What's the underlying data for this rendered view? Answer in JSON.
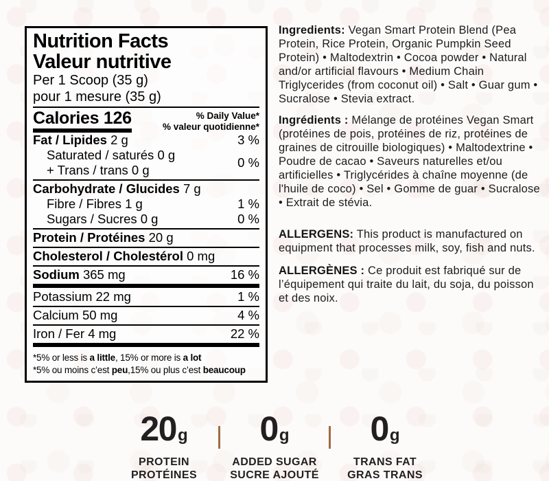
{
  "colors": {
    "background": "#fdfbfa",
    "label_text": "#000000",
    "body_text": "#1c1c1c",
    "callout_text": "#231f20",
    "callout_divider": "#a06c42"
  },
  "label": {
    "title_en": "Nutrition Facts",
    "title_fr": "Valeur nutritive",
    "serving_en": "Per 1 Scoop (35 g)",
    "serving_fr": "pour 1 mesure (35 g)",
    "calories": "Calories 126",
    "dv_header_en": "% Daily Value*",
    "dv_header_fr": "% valeur quotidienne*",
    "rows": {
      "fat": {
        "name": "Fat / Lipides",
        "amount": " 2 g",
        "dv": "3 %"
      },
      "sat_trans": {
        "line1": "Saturated / saturés 0 g",
        "line2": "+ Trans / trans 0 g",
        "dv": "0 %"
      },
      "carb": {
        "name": "Carbohydrate / Glucides",
        "amount": " 7 g"
      },
      "fibre": {
        "text": "Fibre / Fibres 1 g",
        "dv": "1 %"
      },
      "sugars": {
        "text": "Sugars / Sucres 0 g",
        "dv": "0 %"
      },
      "protein": {
        "name": "Protein / Protéines",
        "amount": " 20 g"
      },
      "cholesterol": {
        "name": "Cholesterol / Cholestérol",
        "amount": " 0 mg"
      },
      "sodium": {
        "name": "Sodium",
        "amount": " 365 mg",
        "dv": "16 %"
      },
      "potassium": {
        "text": "Potassium 22 mg",
        "dv": "1 %"
      },
      "calcium": {
        "text": "Calcium 50 mg",
        "dv": "4 %"
      },
      "iron": {
        "text": "Iron / Fer 4 mg",
        "dv": "22 %"
      }
    },
    "footnote_en": {
      "p1": "*5% or less is ",
      "b1": "a little",
      "p2": ", 15% or more is ",
      "b2": "a lot"
    },
    "footnote_fr": {
      "p1": "*5% ou moins c’est ",
      "b1": "peu",
      "p2": ",15% ou plus c’est ",
      "b2": "beaucoup"
    }
  },
  "right": {
    "ingredients_en": {
      "lead": "Ingredients:",
      "text": " Vegan Smart Protein Blend (Pea Protein, Rice Protein, Organic Pumpkin Seed Protein) • Maltodextrin • Cocoa powder • Natural and/or artificial flavours • Medium Chain Triglycerides (from coconut oil) • Salt • Guar gum • Sucralose • Stevia extract."
    },
    "ingredients_fr": {
      "lead": "Ingrédients :",
      "text": " Mélange de protéines Vegan Smart (protéines de pois, protéines de riz, protéines de graines de citrouille biologiques) • Maltodextrine • Poudre de cacao • Saveurs naturelles et/ou artificielles • Triglycérides à chaîne moyenne (de l'huile de coco) • Sel • Gomme de guar • Sucralose • Extrait de stévia."
    },
    "allergens_en": {
      "lead": "ALLERGENS:",
      "text": " This product is manufactured on equipment that processes milk, soy, fish and nuts."
    },
    "allergens_fr": {
      "lead": "ALLERGÈNES :",
      "text": " Ce produit est fabriqué sur de l’équipement qui traite du lait, du soja, du poisson et des noix."
    }
  },
  "callouts": {
    "items": [
      {
        "value": "20",
        "unit": "g",
        "label_en": "PROTEIN",
        "label_fr": "PROTÉINES"
      },
      {
        "value": "0",
        "unit": "g",
        "label_en": "ADDED SUGAR",
        "label_fr": "SUCRE AJOUTÉ"
      },
      {
        "value": "0",
        "unit": "g",
        "label_en": "TRANS FAT",
        "label_fr": "GRAS TRANS"
      }
    ]
  }
}
